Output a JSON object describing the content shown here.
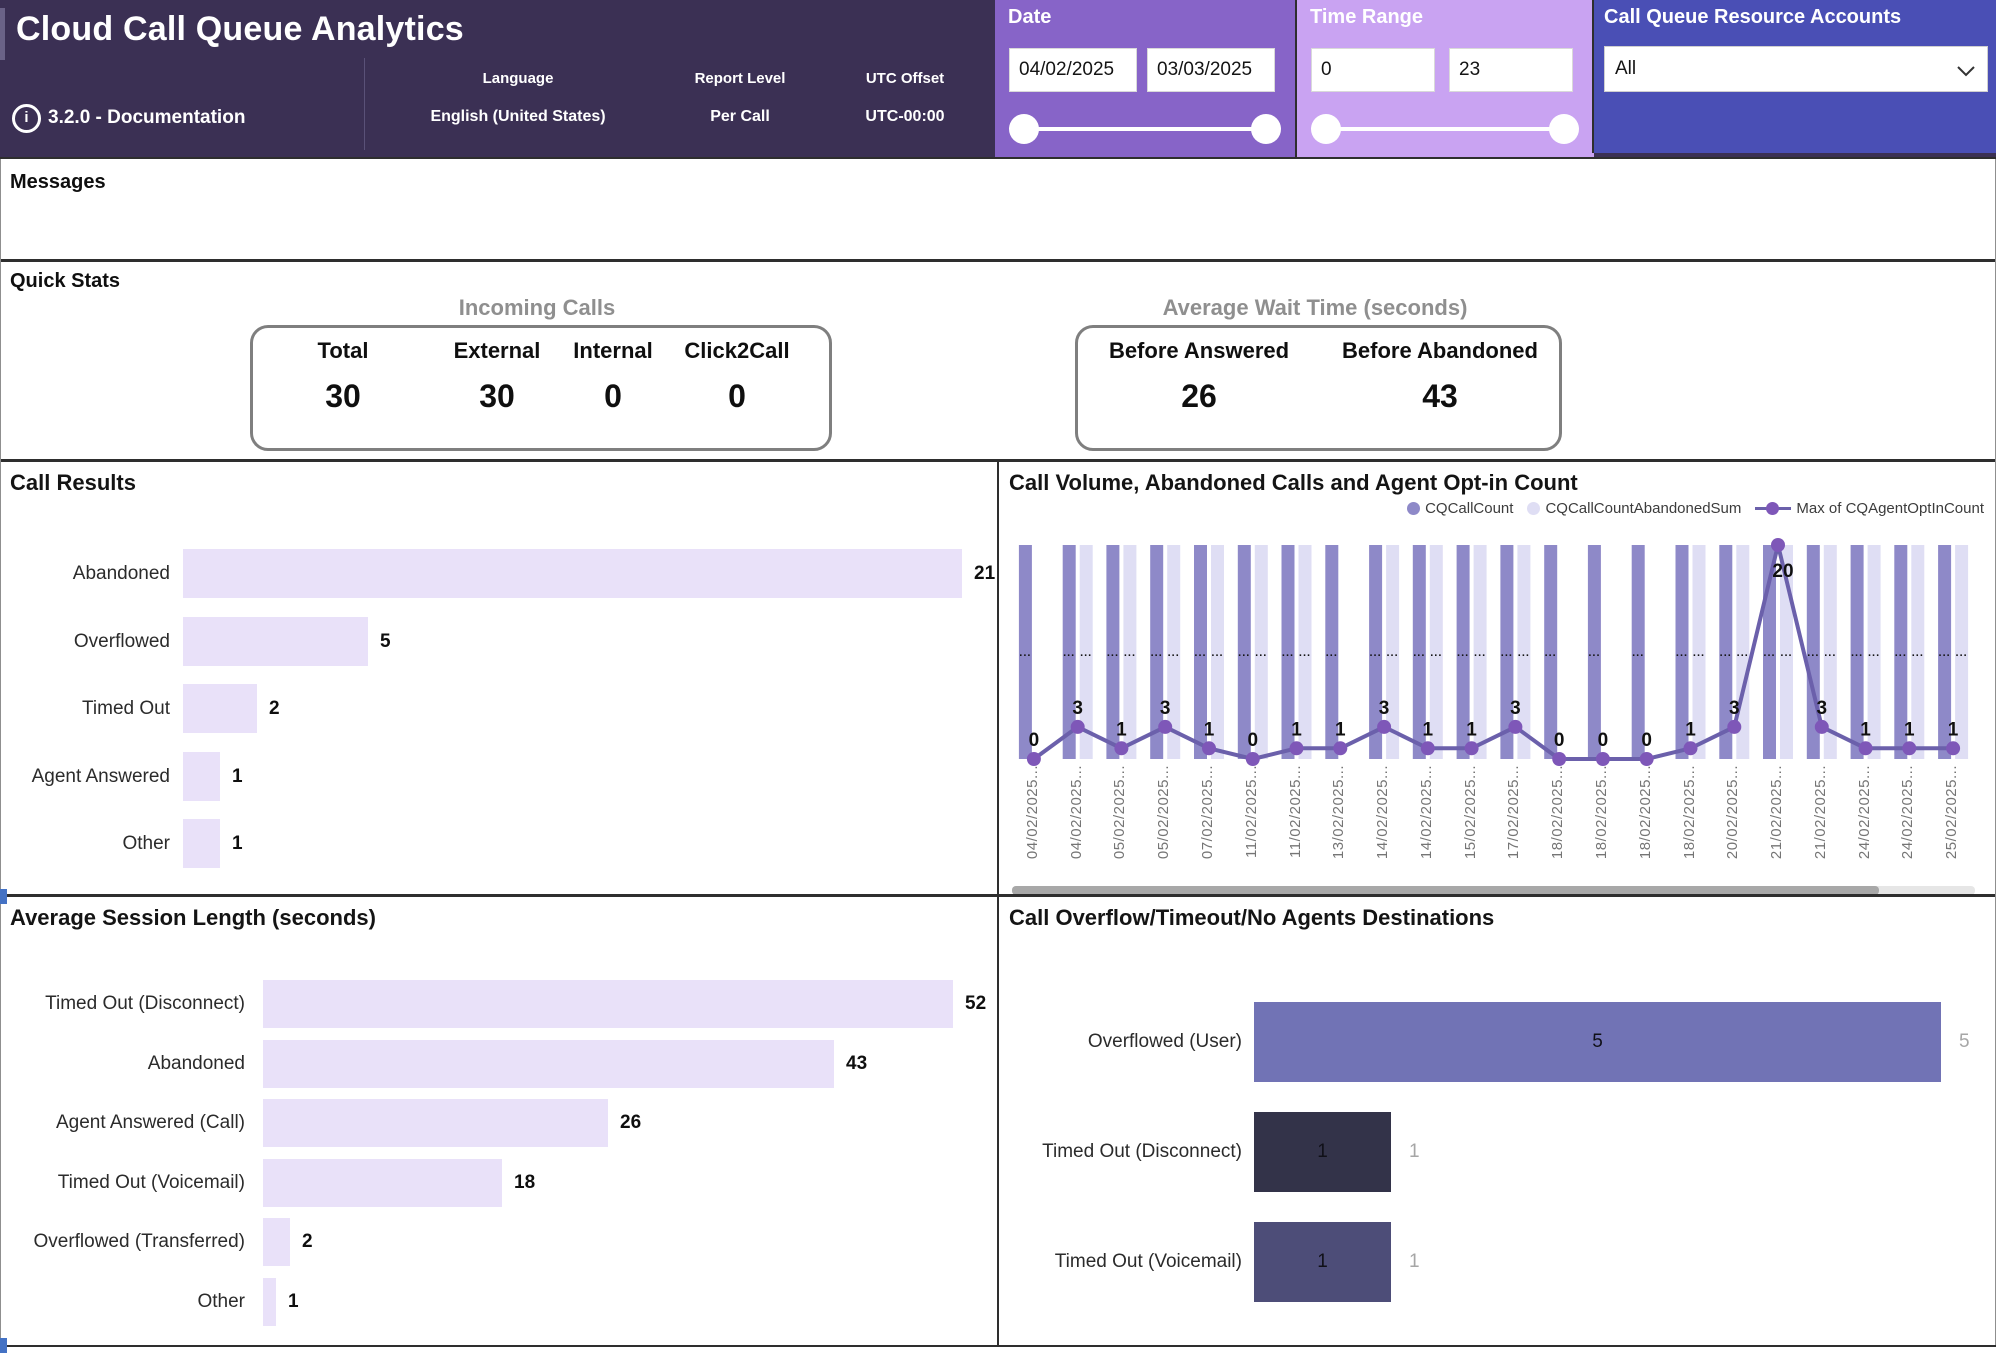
{
  "header": {
    "title": "Cloud Call Queue Analytics",
    "version": "3.2.0 - Documentation",
    "meta": [
      {
        "label": "Language",
        "value": "English (United States)"
      },
      {
        "label": "Report Level",
        "value": "Per Call"
      },
      {
        "label": "UTC Offset",
        "value": "UTC-00:00"
      }
    ],
    "date_filter": {
      "title": "Date",
      "start": "04/02/2025",
      "end": "03/03/2025"
    },
    "time_filter": {
      "title": "Time Range",
      "start": "0",
      "end": "23"
    },
    "queue_filter": {
      "title": "Call Queue Resource Accounts",
      "selected": "All"
    }
  },
  "messages": {
    "title": "Messages"
  },
  "quick_stats": {
    "title": "Quick Stats",
    "groups": [
      {
        "heading": "Incoming Calls",
        "stats": [
          {
            "label": "Total",
            "value": "30"
          },
          {
            "label": "External",
            "value": "30"
          },
          {
            "label": "Internal",
            "value": "0"
          },
          {
            "label": "Click2Call",
            "value": "0"
          }
        ]
      },
      {
        "heading": "Average Wait Time (seconds)",
        "stats": [
          {
            "label": "Before Answered",
            "value": "26"
          },
          {
            "label": "Before Abandoned",
            "value": "43"
          }
        ]
      }
    ]
  },
  "colors": {
    "header_bg": "#3b3054",
    "date_panel": "#8764c8",
    "time_panel": "#c9a3f2",
    "queue_panel": "#4a4fb5",
    "light_lavender_bar": "#e9e1f9",
    "call_count_bar": "#8e89c8",
    "abandoned_bar": "#dfdef4",
    "optin_line": "#6b60ab",
    "optin_marker": "#7e57b8",
    "dest_overflowed": "#7173b5",
    "dest_disconnect": "#333349",
    "dest_voicemail": "#4d4d78"
  },
  "chart_data": [
    {
      "id": "call_results",
      "type": "bar",
      "orientation": "horizontal",
      "title": "Call Results",
      "categories": [
        "Abandoned",
        "Overflowed",
        "Timed Out",
        "Agent Answered",
        "Other"
      ],
      "values": [
        21,
        5,
        2,
        1,
        1
      ],
      "bar_color": "#e9e1f9",
      "xlim": [
        0,
        21
      ],
      "value_labels": true,
      "grid": false
    },
    {
      "id": "call_volume",
      "type": "combo",
      "title": "Call Volume, Abandoned Calls and Agent Opt-in Count",
      "categories": [
        "04/02/2025...",
        "04/02/2025...",
        "05/02/2025...",
        "05/02/2025...",
        "07/02/2025...",
        "11/02/2025...",
        "11/02/2025...",
        "13/02/2025...",
        "14/02/2025...",
        "14/02/2025...",
        "15/02/2025...",
        "17/02/2025...",
        "18/02/2025...",
        "18/02/2025...",
        "18/02/2025...",
        "18/02/2025...",
        "20/02/2025...",
        "21/02/2025...",
        "21/02/2025...",
        "24/02/2025...",
        "24/02/2025...",
        "25/02/2025..."
      ],
      "series": [
        {
          "name": "CQCallCount",
          "type": "bar",
          "color": "#8e89c8",
          "present": [
            true,
            true,
            true,
            true,
            true,
            true,
            true,
            true,
            true,
            true,
            true,
            true,
            true,
            true,
            true,
            true,
            true,
            true,
            true,
            true,
            true,
            true
          ]
        },
        {
          "name": "CQCallCountAbandonedSum",
          "type": "bar",
          "color": "#dfdef4",
          "present": [
            false,
            true,
            true,
            true,
            true,
            true,
            true,
            false,
            true,
            true,
            true,
            true,
            false,
            false,
            false,
            true,
            true,
            true,
            true,
            true,
            true,
            true
          ]
        },
        {
          "name": "Max of CQAgentOptInCount",
          "type": "line",
          "color": "#6b60ab",
          "marker_color": "#7e57b8",
          "values": [
            0,
            3,
            1,
            3,
            1,
            0,
            1,
            1,
            3,
            1,
            1,
            3,
            0,
            0,
            0,
            1,
            3,
            20,
            3,
            1,
            1,
            1
          ]
        }
      ],
      "truncated_bar_label": "...",
      "ylim": [
        0,
        20
      ],
      "legend_position": "top-right",
      "grid": false,
      "has_horizontal_scrollbar": true
    },
    {
      "id": "session_length",
      "type": "bar",
      "orientation": "horizontal",
      "title": "Average Session Length (seconds)",
      "categories": [
        "Timed Out (Disconnect)",
        "Abandoned",
        "Agent Answered (Call)",
        "Timed Out (Voicemail)",
        "Overflowed (Transferred)",
        "Other"
      ],
      "values": [
        52,
        43,
        26,
        18,
        2,
        1
      ],
      "bar_color": "#e9e1f9",
      "xlim": [
        0,
        52
      ],
      "value_labels": true,
      "grid": false
    },
    {
      "id": "destinations",
      "type": "bar",
      "orientation": "horizontal",
      "title": "Call Overflow/Timeout/No Agents Destinations",
      "categories": [
        "Overflowed (User)",
        "Timed Out (Disconnect)",
        "Timed Out (Voicemail)"
      ],
      "values": [
        5,
        1,
        1
      ],
      "bar_colors": [
        "#7173b5",
        "#333349",
        "#4d4d78"
      ],
      "inside_labels": [
        "5",
        "1",
        "1"
      ],
      "outside_labels": [
        "5",
        "1",
        "1"
      ],
      "xlim": [
        0,
        5
      ],
      "grid": false
    }
  ]
}
